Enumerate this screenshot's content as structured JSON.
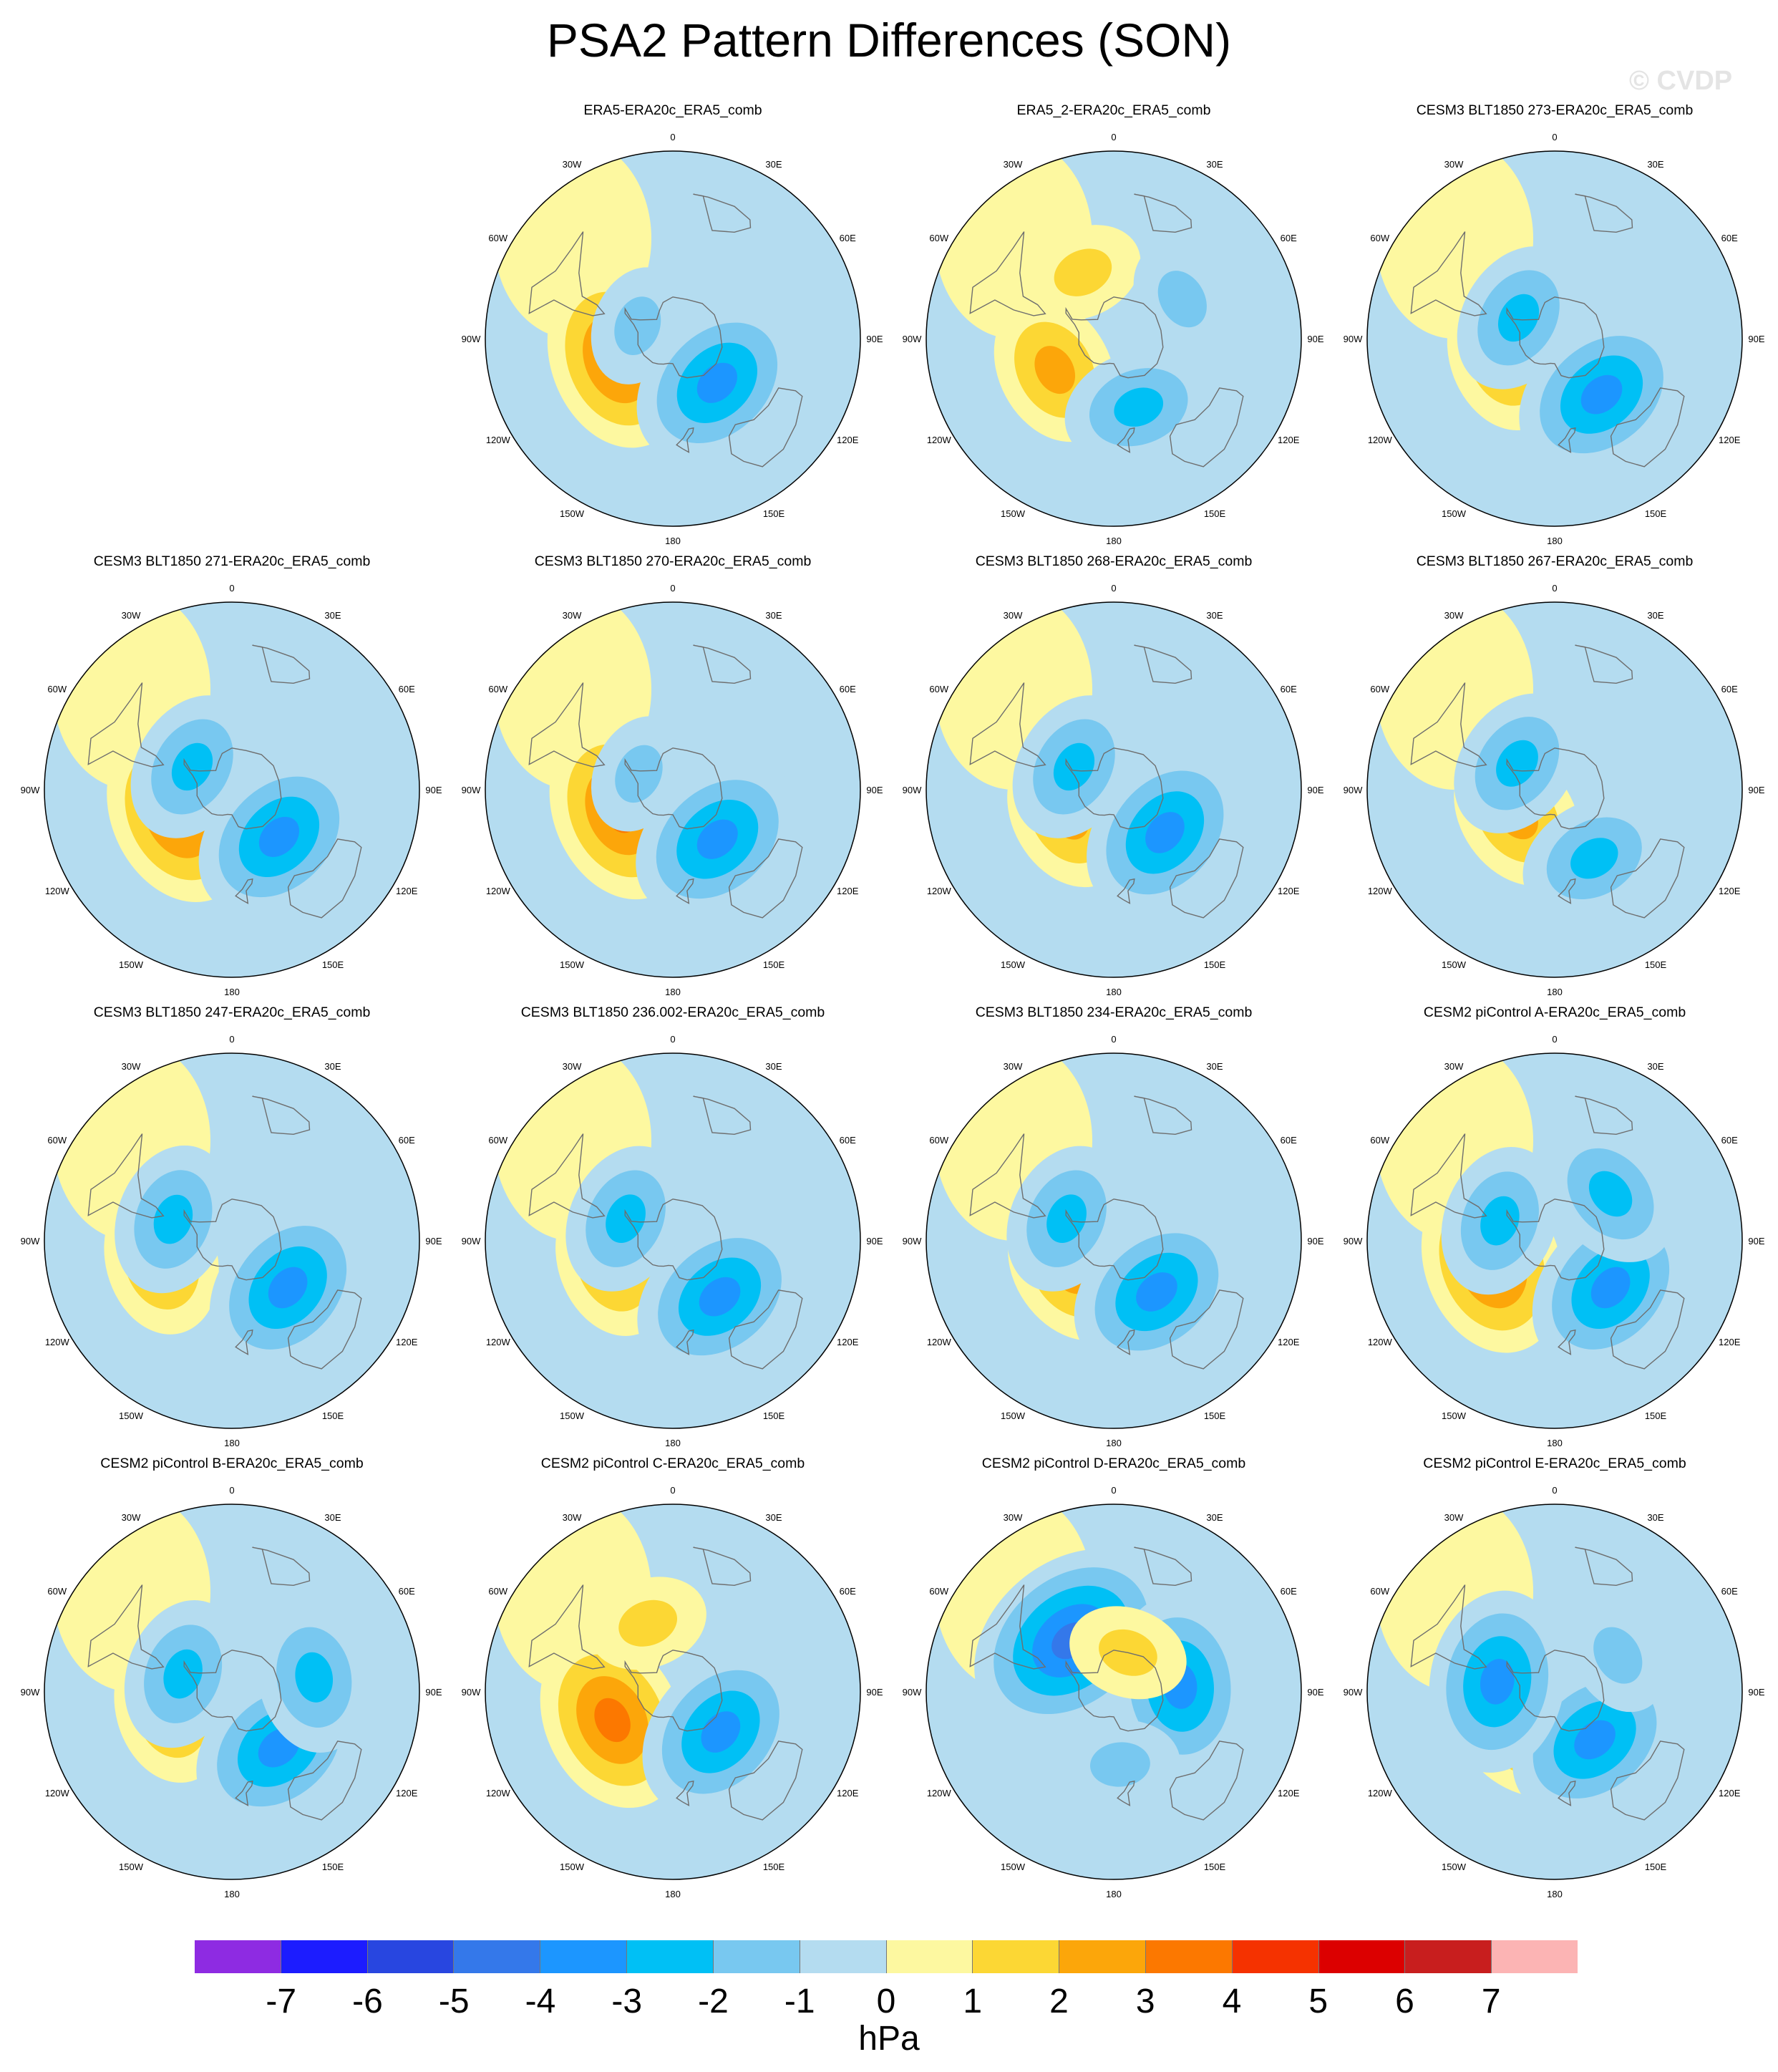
{
  "figure": {
    "title": "PSA2 Pattern Differences (SON)",
    "watermark": "© CVDP",
    "units": "hPa"
  },
  "colorbar": {
    "colors": [
      "#8e2be2",
      "#1c1cff",
      "#2846e0",
      "#3478ea",
      "#1c96ff",
      "#00c0f5",
      "#78c8f0",
      "#b4dcf0",
      "#fdf8a0",
      "#fcd734",
      "#fca60a",
      "#fc7800",
      "#f53200",
      "#dc0000",
      "#c81e1e",
      "#fcb4b4"
    ],
    "tick_labels": [
      "-7",
      "-6",
      "-5",
      "-4",
      "-3",
      "-2",
      "-1",
      "0",
      "1",
      "2",
      "3",
      "4",
      "5",
      "6",
      "7"
    ]
  },
  "lon_labels": [
    "0",
    "30E",
    "60E",
    "90E",
    "120E",
    "150E",
    "180",
    "150W",
    "120W",
    "90W",
    "60W",
    "30W"
  ],
  "chart_data": {
    "type": "heatmap",
    "projection": "south polar stereographic",
    "variable": "sea level pressure difference",
    "units": "hPa",
    "levels": [
      -7,
      -6,
      -5,
      -4,
      -3,
      -2,
      -1,
      0,
      1,
      2,
      3,
      4,
      5,
      6,
      7
    ],
    "panels": [
      {
        "title": "ERA5-ERA20c_ERA5_comb",
        "min_hPa": -3.5,
        "max_hPa": 3.5,
        "features": [
          {
            "lon": -110,
            "lat": -62,
            "value": 3.5
          },
          {
            "lon": 135,
            "lat": -60,
            "value": -3.5
          },
          {
            "lon": -70,
            "lat": -72,
            "value": -2
          }
        ]
      },
      {
        "title": "ERA5_2-ERA20c_ERA5_comb",
        "min_hPa": -2.5,
        "max_hPa": 2.5,
        "features": [
          {
            "lon": -118,
            "lat": -58,
            "value": 2.5
          },
          {
            "lon": -25,
            "lat": -55,
            "value": 1.5
          },
          {
            "lon": 160,
            "lat": -55,
            "value": -2.5
          },
          {
            "lon": 60,
            "lat": -52,
            "value": -1.5
          }
        ]
      },
      {
        "title": "CESM3 BLT1850 273-ERA20c_ERA5_comb",
        "min_hPa": -3.5,
        "max_hPa": 2.5,
        "features": [
          {
            "lon": -110,
            "lat": -65,
            "value": 2.5
          },
          {
            "lon": 140,
            "lat": -55,
            "value": -3.5
          },
          {
            "lon": -60,
            "lat": -70,
            "value": -2.5
          }
        ]
      },
      {
        "title": "CESM3 BLT1850 271-ERA20c_ERA5_comb",
        "min_hPa": -3.5,
        "max_hPa": 3.5,
        "features": [
          {
            "lon": -115,
            "lat": -62,
            "value": 3.5
          },
          {
            "lon": 135,
            "lat": -58,
            "value": -3.5
          },
          {
            "lon": -60,
            "lat": -68,
            "value": -2.5
          }
        ]
      },
      {
        "title": "CESM3 BLT1850 270-ERA20c_ERA5_comb",
        "min_hPa": -3.5,
        "max_hPa": 3.5,
        "features": [
          {
            "lon": -112,
            "lat": -63,
            "value": 3.5
          },
          {
            "lon": 138,
            "lat": -58,
            "value": -3.5
          },
          {
            "lon": -65,
            "lat": -72,
            "value": -2
          }
        ]
      },
      {
        "title": "CESM3 BLT1850 268-ERA20c_ERA5_comb",
        "min_hPa": -3.5,
        "max_hPa": 2.5,
        "features": [
          {
            "lon": -120,
            "lat": -65,
            "value": 2.5
          },
          {
            "lon": 130,
            "lat": -58,
            "value": -3.5
          },
          {
            "lon": -60,
            "lat": -68,
            "value": -2.5
          }
        ]
      },
      {
        "title": "CESM3 BLT1850 267-ERA20c_ERA5_comb",
        "min_hPa": -2.5,
        "max_hPa": 2.5,
        "features": [
          {
            "lon": -125,
            "lat": -68,
            "value": 2.5
          },
          {
            "lon": 150,
            "lat": -52,
            "value": -2.5
          },
          {
            "lon": -55,
            "lat": -68,
            "value": -2.5
          }
        ]
      },
      {
        "title": "CESM3 BLT1850 247-ERA20c_ERA5_comb",
        "min_hPa": -3.5,
        "max_hPa": 2.5,
        "features": [
          {
            "lon": -105,
            "lat": -55,
            "value": 2.5
          },
          {
            "lon": 130,
            "lat": -55,
            "value": -3.5
          },
          {
            "lon": -70,
            "lat": -60,
            "value": -3
          }
        ]
      },
      {
        "title": "CESM3 BLT1850 236.002-ERA20c_ERA5_comb",
        "min_hPa": -3.5,
        "max_hPa": 2.5,
        "features": [
          {
            "lon": -110,
            "lat": -60,
            "value": 2.5
          },
          {
            "lon": 140,
            "lat": -55,
            "value": -3.5
          },
          {
            "lon": -65,
            "lat": -65,
            "value": -3
          }
        ]
      },
      {
        "title": "CESM3 BLT1850 234-ERA20c_ERA5_comb",
        "min_hPa": -3.5,
        "max_hPa": 2.5,
        "features": [
          {
            "lon": -125,
            "lat": -65,
            "value": 2.5
          },
          {
            "lon": 140,
            "lat": -58,
            "value": -3.5
          },
          {
            "lon": -65,
            "lat": -65,
            "value": -3
          }
        ]
      },
      {
        "title": "CESM2 piControl A-ERA20c_ERA5_comb",
        "min_hPa": -3.5,
        "max_hPa": 3.5,
        "features": [
          {
            "lon": -110,
            "lat": -58,
            "value": 3.5
          },
          {
            "lon": 130,
            "lat": -55,
            "value": -3.5
          },
          {
            "lon": -70,
            "lat": -62,
            "value": -3
          },
          {
            "lon": 50,
            "lat": -55,
            "value": -2.5
          }
        ]
      },
      {
        "title": "CESM2 piControl B-ERA20c_ERA5_comb",
        "min_hPa": -3.5,
        "max_hPa": 2.5,
        "features": [
          {
            "lon": -105,
            "lat": -60,
            "value": 2.5
          },
          {
            "lon": 140,
            "lat": -55,
            "value": -3.5
          },
          {
            "lon": -70,
            "lat": -65,
            "value": -3
          },
          {
            "lon": 80,
            "lat": -50,
            "value": -2.5
          }
        ]
      },
      {
        "title": "CESM2 piControl C-ERA20c_ERA5_comb",
        "min_hPa": -3.5,
        "max_hPa": 3.5,
        "features": [
          {
            "lon": -115,
            "lat": -58,
            "value": 3.5
          },
          {
            "lon": 130,
            "lat": -60,
            "value": -3.5
          },
          {
            "lon": -20,
            "lat": -55,
            "value": 1.5
          }
        ]
      },
      {
        "title": "CESM2 piControl D-ERA20c_ERA5_comb",
        "min_hPa": -4.5,
        "max_hPa": 1.5,
        "features": [
          {
            "lon": -40,
            "lat": -58,
            "value": -4.5
          },
          {
            "lon": 85,
            "lat": -58,
            "value": -3.5
          },
          {
            "lon": 175,
            "lat": -55,
            "value": -2
          },
          {
            "lon": 20,
            "lat": -70,
            "value": 1.5
          }
        ]
      },
      {
        "title": "CESM2 piControl E-ERA20c_ERA5_comb",
        "min_hPa": -3.5,
        "max_hPa": 2.5,
        "features": [
          {
            "lon": -145,
            "lat": -65,
            "value": 2.5
          },
          {
            "lon": 140,
            "lat": -60,
            "value": -3.5
          },
          {
            "lon": -80,
            "lat": -62,
            "value": -3.5
          },
          {
            "lon": 60,
            "lat": -55,
            "value": -1.5
          }
        ]
      }
    ]
  }
}
